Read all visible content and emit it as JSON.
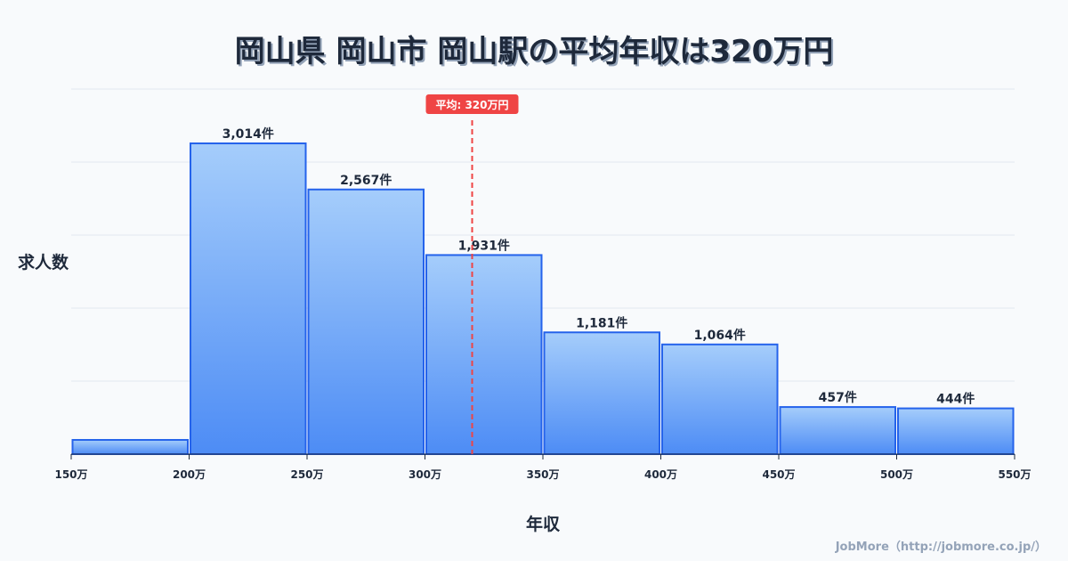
{
  "chart_data": {
    "type": "bar",
    "title": "岡山県 岡山市 岡山駅の平均年収は320万円",
    "xlabel": "年収",
    "ylabel": "求人数",
    "bin_edges": [
      150,
      200,
      250,
      300,
      350,
      400,
      450,
      500,
      550
    ],
    "x_tick_labels": [
      "150万",
      "200万",
      "250万",
      "300万",
      "350万",
      "400万",
      "450万",
      "500万",
      "550万"
    ],
    "values": [
      138,
      3014,
      2567,
      1931,
      1181,
      1064,
      457,
      444
    ],
    "value_labels": [
      "",
      "3,014件",
      "2,567件",
      "1,931件",
      "1,181件",
      "1,064件",
      "457件",
      "444件"
    ],
    "ylim": [
      0,
      3541
    ],
    "grid": true,
    "average": {
      "value": 320,
      "label": "平均: 320万円",
      "color": "#ef4444"
    },
    "bar_color_top": "#a5cdfb",
    "bar_color_bottom": "#4d8cf5",
    "bar_stroke": "#2563eb"
  },
  "credit": "JobMore（http://jobmore.co.jp/）"
}
